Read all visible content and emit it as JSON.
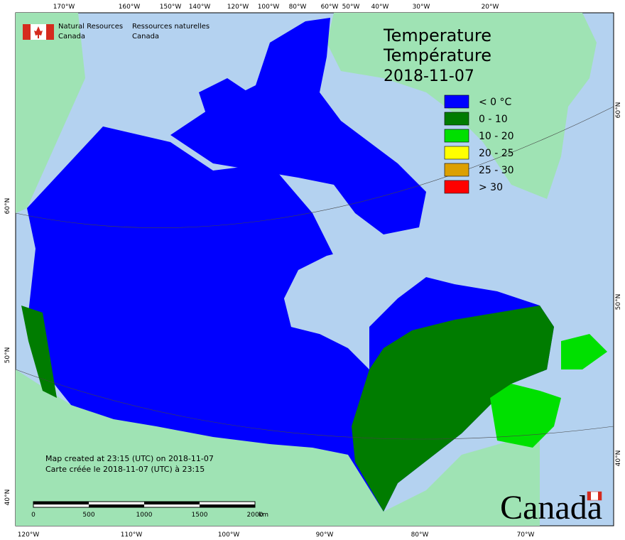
{
  "header": {
    "agency_en": [
      "Natural Resources",
      "Canada"
    ],
    "agency_fr": [
      "Ressources naturelles",
      "Canada"
    ]
  },
  "title": {
    "en": "Temperature",
    "fr": "Température",
    "date": "2018-11-07"
  },
  "legend": [
    {
      "label": "< 0 °C",
      "color": "#0000ff"
    },
    {
      "label": "0 - 10",
      "color": "#007c00"
    },
    {
      "label": "10 - 20",
      "color": "#00e000"
    },
    {
      "label": "20 - 25",
      "color": "#ffff00"
    },
    {
      "label": "25 - 30",
      "color": "#dca000"
    },
    {
      "label": "> 30",
      "color": "#ff0000"
    }
  ],
  "credits": [
    "Map created at 23:15 (UTC) on 2018-11-07",
    "Carte créée le 2018-11-07 (UTC) à 23:15"
  ],
  "scale_bar": {
    "ticks": [
      "0",
      "500",
      "1000",
      "1500",
      "2000"
    ],
    "unit": "km"
  },
  "graticule": {
    "top": [
      "170°W",
      "160°W",
      "150°W",
      "140°W",
      "120°W",
      "100°W",
      "80°W",
      "60°W",
      "50°W",
      "40°W",
      "30°W",
      "20°W"
    ],
    "bottom": [
      "120°W",
      "110°W",
      "100°W",
      "90°W",
      "80°W",
      "70°W"
    ],
    "left": [
      "60°N",
      "50°N",
      "40°N"
    ],
    "right": [
      "60°N",
      "50°N",
      "40°N"
    ]
  },
  "wordmark": "Canada"
}
